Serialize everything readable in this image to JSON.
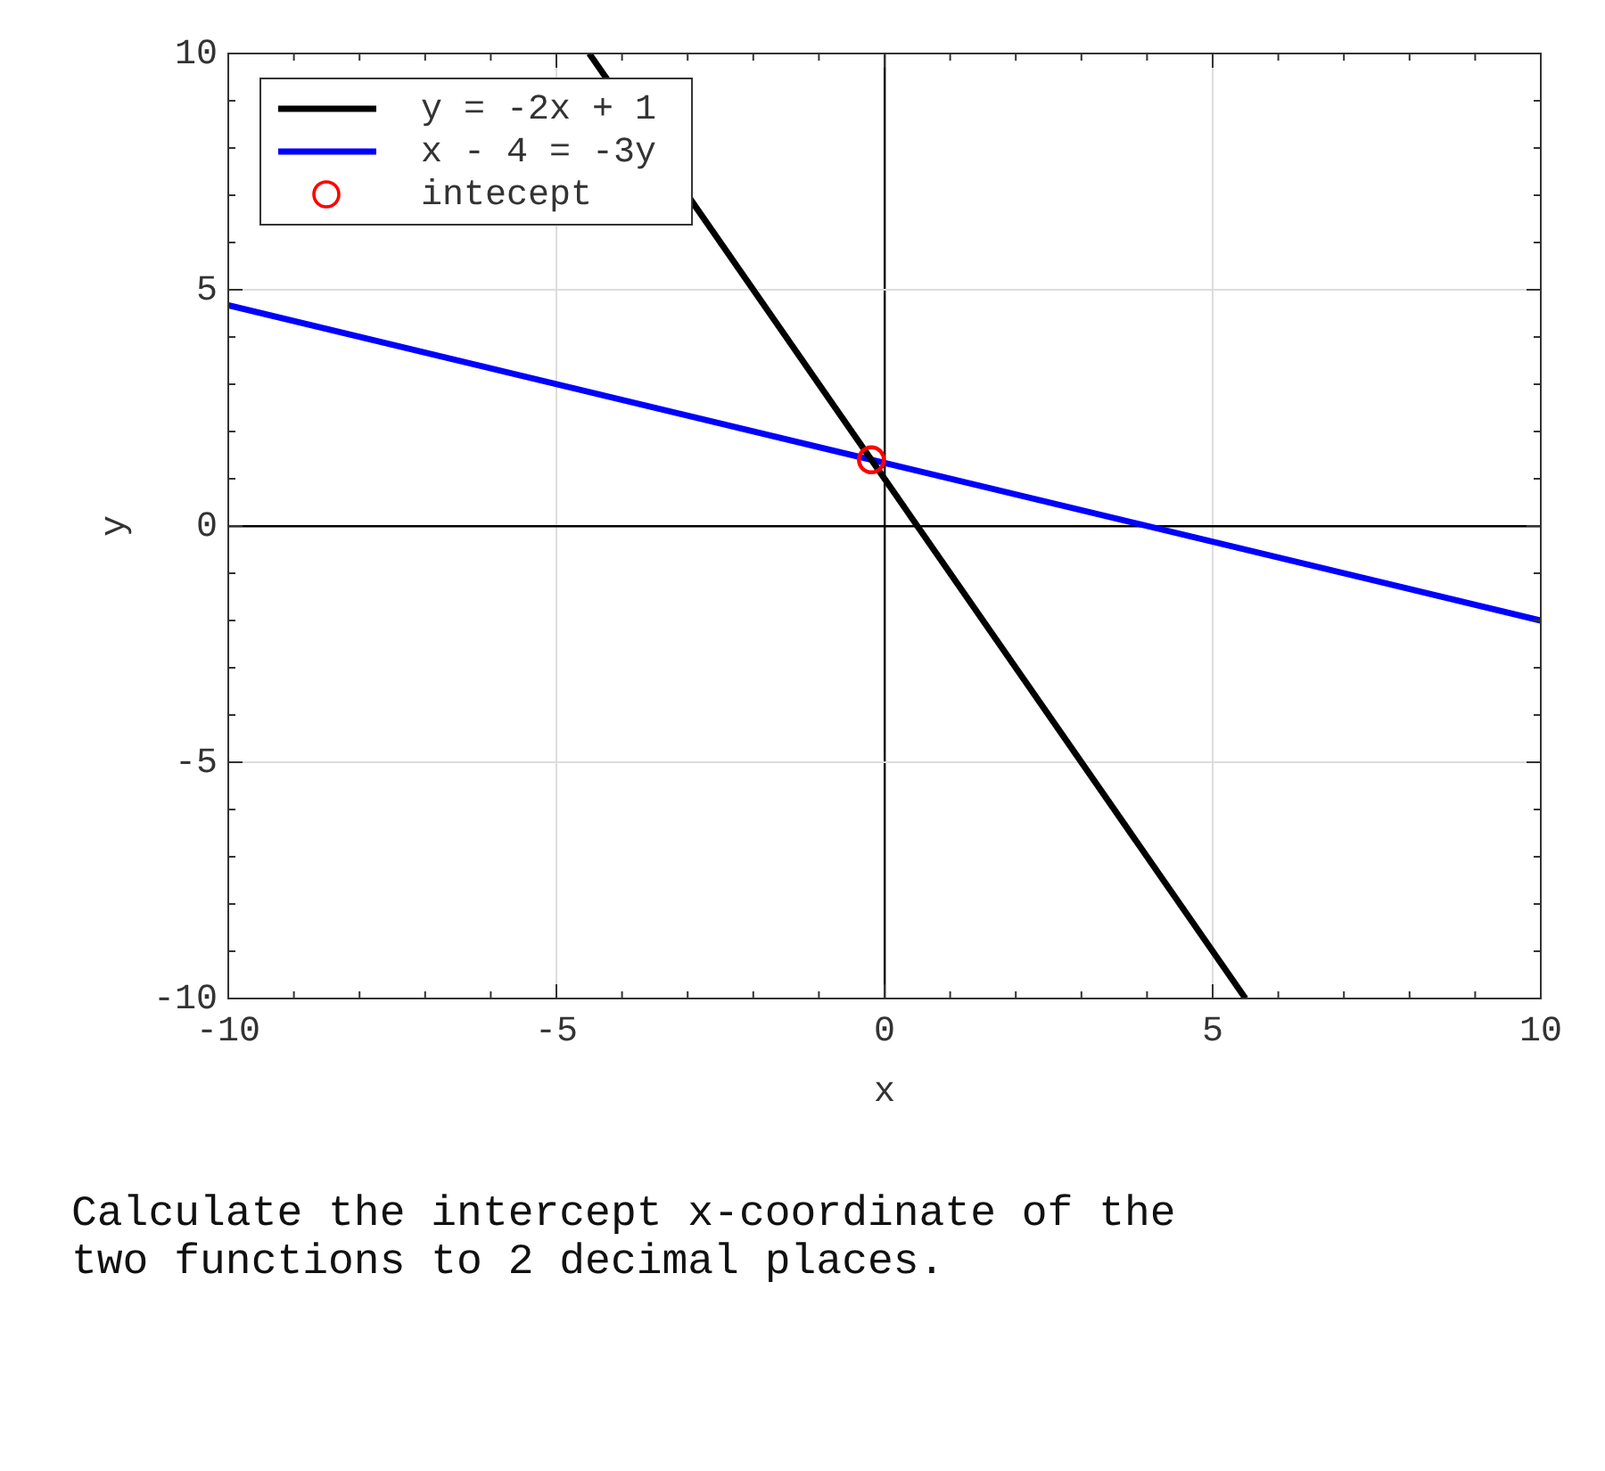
{
  "chart_data": {
    "type": "line",
    "xlabel": "x",
    "ylabel": "y",
    "xlim": [
      -10,
      10
    ],
    "ylim": [
      -10,
      10
    ],
    "xticks": [
      -10,
      {
        "value": -9,
        "label": null
      },
      {
        "value": -8,
        "label": null
      },
      {
        "value": -7,
        "label": null
      },
      {
        "value": -6,
        "label": null
      },
      -5,
      {
        "value": -4,
        "label": null
      },
      {
        "value": -3,
        "label": null
      },
      {
        "value": -2,
        "label": null
      },
      {
        "value": -1,
        "label": null
      },
      0,
      {
        "value": 1,
        "label": null
      },
      {
        "value": 2,
        "label": null
      },
      {
        "value": 3,
        "label": null
      },
      {
        "value": 4,
        "label": null
      },
      5,
      {
        "value": 6,
        "label": null
      },
      {
        "value": 7,
        "label": null
      },
      {
        "value": 8,
        "label": null
      },
      {
        "value": 9,
        "label": null
      },
      10
    ],
    "yticks": [
      -10,
      {
        "value": -9,
        "label": null
      },
      {
        "value": -8,
        "label": null
      },
      {
        "value": -7,
        "label": null
      },
      {
        "value": -6,
        "label": null
      },
      -5,
      {
        "value": -4,
        "label": null
      },
      {
        "value": -3,
        "label": null
      },
      {
        "value": -2,
        "label": null
      },
      {
        "value": -1,
        "label": null
      },
      0,
      {
        "value": 1,
        "label": null
      },
      {
        "value": 2,
        "label": null
      },
      {
        "value": 3,
        "label": null
      },
      {
        "value": 4,
        "label": null
      },
      5,
      {
        "value": 6,
        "label": null
      },
      {
        "value": 7,
        "label": null
      },
      {
        "value": 8,
        "label": null
      },
      {
        "value": 9,
        "label": null
      },
      10
    ],
    "grid": true,
    "legend": "top left",
    "series": [
      {
        "name": "y = -2x + 1",
        "color": "#000000",
        "x": [
          -4.5,
          5.5
        ],
        "values": [
          10,
          -10
        ]
      },
      {
        "name": "x - 4 = -3y",
        "color": "#0000ff",
        "x": [
          -10,
          10
        ],
        "values": [
          4.67,
          -2
        ]
      },
      {
        "name": "intecept",
        "type": "scatter",
        "marker": "circle",
        "color": "#ff0000",
        "x": [
          -0.2
        ],
        "values": [
          1.4
        ]
      }
    ],
    "annotations": [
      "Calculate the intercept x-coordinate of the two functions to 2 decimal places."
    ]
  }
}
